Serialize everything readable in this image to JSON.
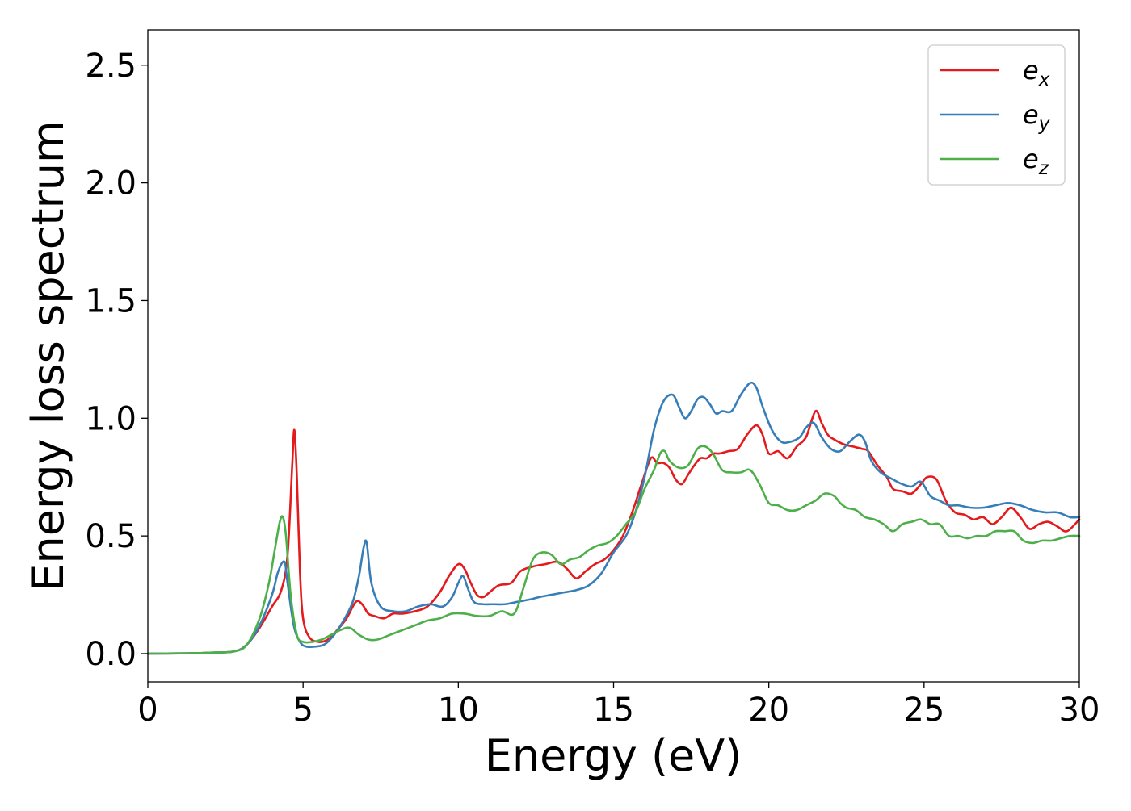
{
  "chart_data": {
    "type": "line",
    "title": "",
    "xlabel": "Energy (eV)",
    "ylabel": "Energy loss spectrum",
    "xlim": [
      0,
      30
    ],
    "ylim": [
      -0.12,
      2.65
    ],
    "xticks": [
      0,
      5,
      10,
      15,
      20,
      25,
      30
    ],
    "xtick_labels": [
      "0",
      "5",
      "10",
      "15",
      "20",
      "25",
      "30"
    ],
    "yticks": [
      0.0,
      0.5,
      1.0,
      1.5,
      2.0,
      2.5
    ],
    "ytick_labels": [
      "0.0",
      "0.5",
      "1.0",
      "1.5",
      "2.0",
      "2.5"
    ],
    "grid": false,
    "legend_position": "top-right",
    "series": [
      {
        "name": "e_x",
        "label_base": "e",
        "label_sub": "x",
        "color": "#e41a1c",
        "x": [
          0,
          1,
          2,
          2.8,
          3.2,
          3.6,
          4.0,
          4.3,
          4.5,
          4.65,
          4.72,
          4.8,
          4.9,
          5.0,
          5.2,
          5.5,
          5.8,
          6.1,
          6.4,
          6.7,
          6.9,
          7.1,
          7.3,
          7.6,
          7.9,
          8.2,
          8.6,
          9.0,
          9.4,
          9.7,
          10.0,
          10.2,
          10.4,
          10.6,
          10.8,
          11.0,
          11.3,
          11.7,
          12.0,
          12.4,
          12.8,
          13.2,
          13.5,
          13.8,
          14.1,
          14.4,
          14.7,
          15.0,
          15.3,
          15.6,
          15.9,
          16.2,
          16.4,
          16.6,
          16.8,
          17.0,
          17.2,
          17.4,
          17.6,
          17.8,
          18.0,
          18.2,
          18.4,
          18.7,
          19.0,
          19.3,
          19.6,
          19.8,
          20.0,
          20.3,
          20.6,
          20.9,
          21.2,
          21.5,
          21.7,
          21.9,
          22.1,
          22.4,
          22.7,
          23.0,
          23.2,
          23.5,
          23.8,
          24.0,
          24.3,
          24.6,
          24.9,
          25.1,
          25.4,
          25.7,
          26.0,
          26.3,
          26.6,
          26.9,
          27.2,
          27.5,
          27.8,
          28.1,
          28.4,
          28.7,
          29.0,
          29.3,
          29.6,
          30.0
        ],
        "y": [
          0,
          0.001,
          0.004,
          0.01,
          0.04,
          0.11,
          0.2,
          0.27,
          0.42,
          0.8,
          0.95,
          0.75,
          0.35,
          0.15,
          0.07,
          0.05,
          0.06,
          0.1,
          0.15,
          0.22,
          0.21,
          0.17,
          0.16,
          0.15,
          0.17,
          0.17,
          0.18,
          0.2,
          0.26,
          0.33,
          0.38,
          0.36,
          0.3,
          0.25,
          0.24,
          0.26,
          0.29,
          0.3,
          0.35,
          0.37,
          0.38,
          0.39,
          0.36,
          0.32,
          0.35,
          0.38,
          0.4,
          0.44,
          0.5,
          0.6,
          0.72,
          0.83,
          0.81,
          0.81,
          0.79,
          0.74,
          0.72,
          0.76,
          0.8,
          0.83,
          0.83,
          0.85,
          0.85,
          0.86,
          0.87,
          0.93,
          0.97,
          0.93,
          0.85,
          0.86,
          0.83,
          0.88,
          0.92,
          1.03,
          0.98,
          0.93,
          0.91,
          0.89,
          0.88,
          0.87,
          0.86,
          0.8,
          0.75,
          0.7,
          0.69,
          0.68,
          0.72,
          0.75,
          0.74,
          0.65,
          0.6,
          0.59,
          0.57,
          0.58,
          0.55,
          0.58,
          0.62,
          0.58,
          0.53,
          0.55,
          0.56,
          0.54,
          0.52,
          0.57
        ]
      },
      {
        "name": "e_y",
        "label_base": "e",
        "label_sub": "y",
        "color": "#377eb8",
        "x": [
          0,
          1,
          2,
          2.8,
          3.2,
          3.6,
          4.0,
          4.2,
          4.4,
          4.5,
          4.7,
          4.9,
          5.1,
          5.4,
          5.7,
          6.0,
          6.3,
          6.6,
          6.8,
          6.95,
          7.05,
          7.2,
          7.5,
          7.9,
          8.3,
          8.7,
          9.1,
          9.5,
          9.8,
          10.0,
          10.15,
          10.3,
          10.5,
          10.8,
          11.1,
          11.5,
          11.9,
          12.3,
          12.6,
          13.0,
          13.4,
          13.8,
          14.2,
          14.6,
          15.0,
          15.4,
          15.7,
          16.0,
          16.3,
          16.6,
          16.9,
          17.1,
          17.3,
          17.5,
          17.7,
          17.9,
          18.1,
          18.3,
          18.5,
          18.8,
          19.1,
          19.4,
          19.6,
          19.8,
          20.1,
          20.4,
          20.7,
          21.0,
          21.2,
          21.45,
          21.7,
          22.0,
          22.3,
          22.6,
          22.9,
          23.1,
          23.3,
          23.6,
          24.0,
          24.3,
          24.6,
          24.9,
          25.2,
          25.5,
          25.8,
          26.1,
          26.5,
          26.9,
          27.3,
          27.7,
          28.1,
          28.5,
          28.9,
          29.3,
          29.7,
          30.0
        ],
        "y": [
          0,
          0.001,
          0.004,
          0.01,
          0.04,
          0.12,
          0.25,
          0.35,
          0.39,
          0.3,
          0.12,
          0.05,
          0.03,
          0.03,
          0.04,
          0.08,
          0.14,
          0.22,
          0.33,
          0.45,
          0.47,
          0.3,
          0.2,
          0.18,
          0.18,
          0.2,
          0.21,
          0.2,
          0.24,
          0.3,
          0.33,
          0.28,
          0.22,
          0.21,
          0.21,
          0.21,
          0.22,
          0.23,
          0.24,
          0.25,
          0.26,
          0.27,
          0.29,
          0.34,
          0.43,
          0.5,
          0.6,
          0.75,
          0.95,
          1.07,
          1.1,
          1.05,
          1.0,
          1.03,
          1.08,
          1.09,
          1.06,
          1.02,
          1.03,
          1.03,
          1.1,
          1.15,
          1.13,
          1.05,
          0.95,
          0.9,
          0.9,
          0.92,
          0.96,
          0.98,
          0.92,
          0.87,
          0.86,
          0.9,
          0.93,
          0.9,
          0.82,
          0.77,
          0.74,
          0.72,
          0.71,
          0.73,
          0.67,
          0.65,
          0.63,
          0.63,
          0.62,
          0.62,
          0.63,
          0.64,
          0.63,
          0.61,
          0.6,
          0.6,
          0.58,
          0.58
        ]
      },
      {
        "name": "e_z",
        "label_base": "e",
        "label_sub": "z",
        "color": "#4daf4a",
        "x": [
          0,
          1,
          2,
          2.8,
          3.2,
          3.6,
          3.9,
          4.1,
          4.25,
          4.35,
          4.45,
          4.6,
          4.8,
          5.0,
          5.3,
          5.6,
          5.9,
          6.2,
          6.5,
          6.8,
          7.1,
          7.4,
          7.8,
          8.2,
          8.6,
          9.0,
          9.4,
          9.8,
          10.2,
          10.6,
          11.0,
          11.4,
          11.8,
          12.1,
          12.4,
          12.7,
          13.0,
          13.3,
          13.6,
          13.9,
          14.2,
          14.5,
          14.8,
          15.1,
          15.4,
          15.7,
          16.0,
          16.3,
          16.5,
          16.65,
          16.8,
          17.1,
          17.4,
          17.7,
          17.95,
          18.2,
          18.5,
          18.8,
          19.1,
          19.4,
          19.7,
          20.0,
          20.3,
          20.6,
          20.9,
          21.2,
          21.5,
          21.8,
          22.1,
          22.3,
          22.5,
          22.8,
          23.1,
          23.4,
          23.7,
          24.0,
          24.3,
          24.6,
          24.9,
          25.2,
          25.5,
          25.8,
          26.1,
          26.4,
          26.7,
          27.0,
          27.3,
          27.6,
          27.9,
          28.2,
          28.5,
          28.8,
          29.1,
          29.4,
          29.7,
          30.0
        ],
        "y": [
          0,
          0.001,
          0.004,
          0.01,
          0.04,
          0.15,
          0.3,
          0.45,
          0.56,
          0.58,
          0.5,
          0.25,
          0.08,
          0.05,
          0.05,
          0.06,
          0.08,
          0.1,
          0.11,
          0.08,
          0.06,
          0.06,
          0.08,
          0.1,
          0.12,
          0.14,
          0.15,
          0.17,
          0.17,
          0.16,
          0.16,
          0.18,
          0.17,
          0.28,
          0.4,
          0.43,
          0.42,
          0.38,
          0.4,
          0.41,
          0.44,
          0.46,
          0.47,
          0.5,
          0.55,
          0.6,
          0.7,
          0.78,
          0.85,
          0.86,
          0.82,
          0.79,
          0.8,
          0.87,
          0.88,
          0.85,
          0.78,
          0.77,
          0.77,
          0.78,
          0.72,
          0.64,
          0.63,
          0.61,
          0.61,
          0.63,
          0.65,
          0.68,
          0.67,
          0.64,
          0.62,
          0.61,
          0.58,
          0.57,
          0.55,
          0.52,
          0.55,
          0.56,
          0.57,
          0.55,
          0.55,
          0.5,
          0.5,
          0.49,
          0.5,
          0.5,
          0.52,
          0.52,
          0.52,
          0.48,
          0.47,
          0.48,
          0.48,
          0.49,
          0.5,
          0.5
        ]
      }
    ]
  }
}
